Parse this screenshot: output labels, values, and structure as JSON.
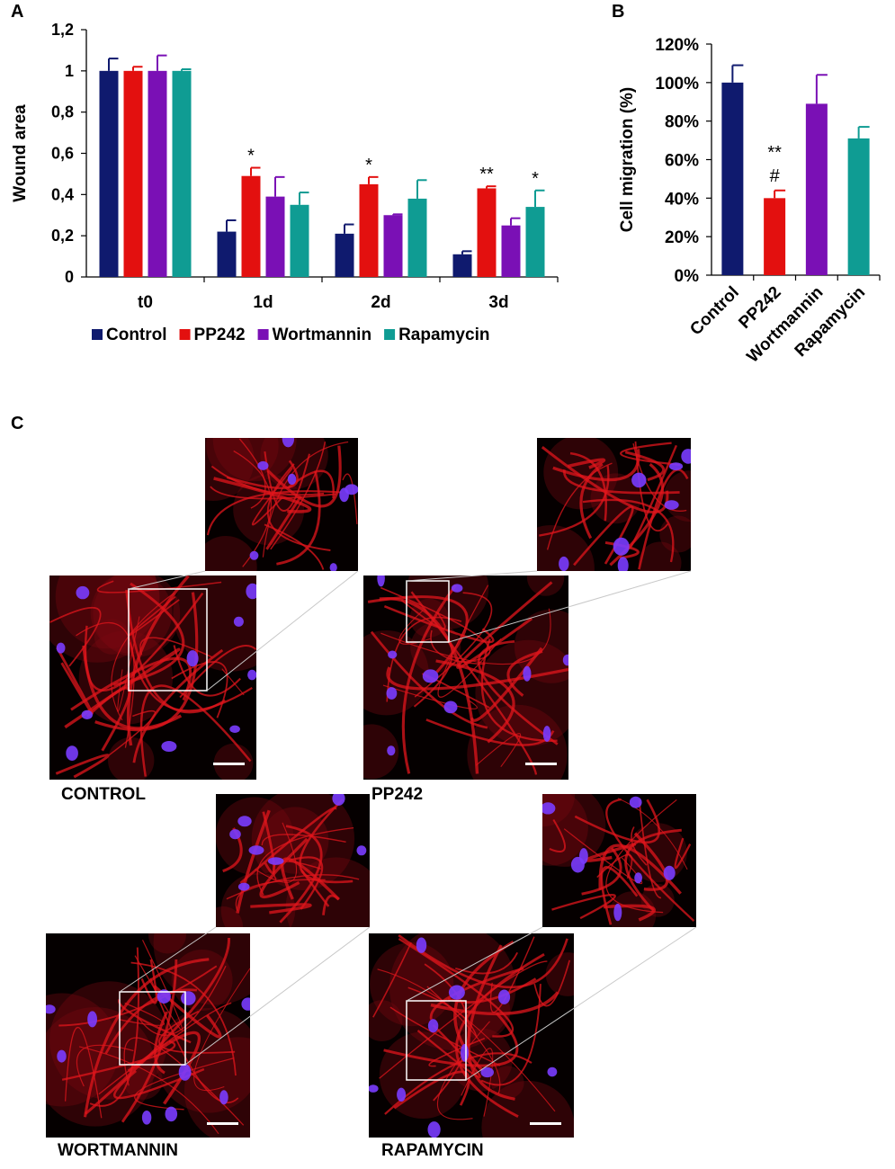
{
  "panels": {
    "a": "A",
    "b": "B",
    "c": "C"
  },
  "chart_data": [
    {
      "type": "bar",
      "panel": "A",
      "ylabel": "Wound area",
      "xlabel": "",
      "ylim": [
        0,
        1.2
      ],
      "yticks": [
        "0",
        "0,2",
        "0,4",
        "0,6",
        "0,8",
        "1",
        "1,2"
      ],
      "categories": [
        "t0",
        "1d",
        "2d",
        "3d"
      ],
      "series": [
        {
          "name": "Control",
          "color": "#0f1a6e",
          "values": [
            1.0,
            0.22,
            0.21,
            0.11
          ],
          "errors": [
            0.06,
            0.055,
            0.045,
            0.015
          ],
          "marks": [
            "",
            "",
            "",
            ""
          ]
        },
        {
          "name": "PP242",
          "color": "#e3100f",
          "values": [
            1.0,
            0.49,
            0.45,
            0.43
          ],
          "errors": [
            0.02,
            0.04,
            0.035,
            0.01
          ],
          "marks": [
            "",
            "*",
            "*",
            "**"
          ]
        },
        {
          "name": "Wortmannin",
          "color": "#7a10b5",
          "values": [
            1.0,
            0.39,
            0.3,
            0.25
          ],
          "errors": [
            0.075,
            0.095,
            0.004,
            0.035
          ],
          "marks": [
            "",
            "",
            "",
            ""
          ]
        },
        {
          "name": "Rapamycin",
          "color": "#0f9c93",
          "values": [
            1.0,
            0.35,
            0.38,
            0.34
          ],
          "errors": [
            0.008,
            0.06,
            0.09,
            0.08
          ],
          "marks": [
            "",
            "",
            "",
            "*"
          ]
        }
      ],
      "legend": "bottom"
    },
    {
      "type": "bar",
      "panel": "B",
      "ylabel": "Cell migration (%)",
      "xlabel": "",
      "ylim": [
        0,
        120
      ],
      "yticks": [
        "0%",
        "20%",
        "40%",
        "60%",
        "80%",
        "100%",
        "120%"
      ],
      "categories": [
        "Control",
        "PP242",
        "Wortmannin",
        "Rapamycin"
      ],
      "colors": [
        "#0f1a6e",
        "#e3100f",
        "#7a10b5",
        "#0f9c93"
      ],
      "values": [
        100,
        40,
        89,
        71
      ],
      "errors": [
        9,
        4,
        15,
        6
      ],
      "marks": [
        "",
        "**\n#",
        "",
        ""
      ]
    }
  ],
  "figure_c": {
    "images": [
      {
        "label": "CONTROL"
      },
      {
        "label": "PP242"
      },
      {
        "label": "WORTMANNIN"
      },
      {
        "label": "RAPAMYCIN"
      }
    ]
  }
}
